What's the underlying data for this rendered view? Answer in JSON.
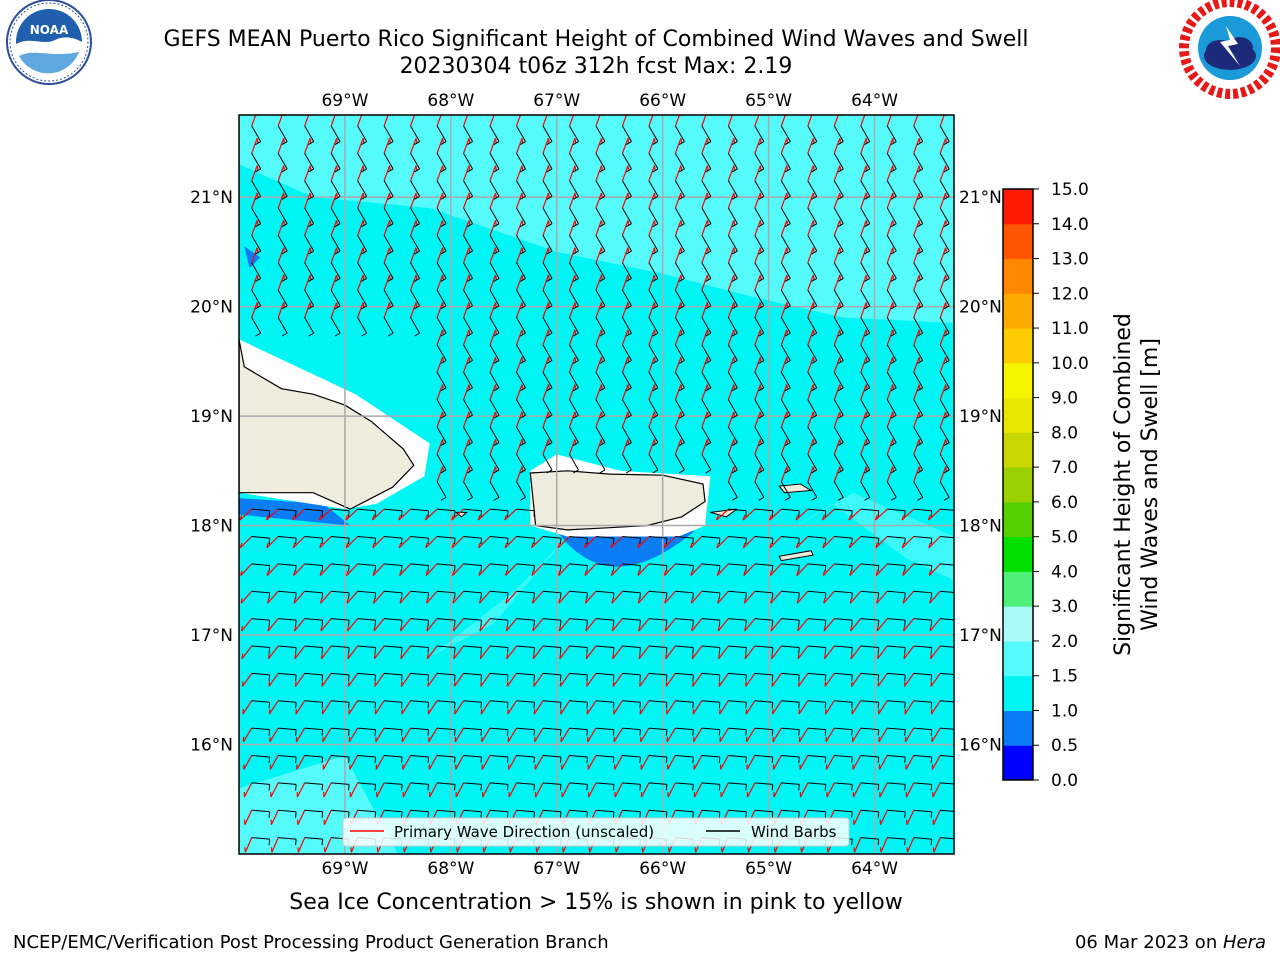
{
  "header": {
    "title_line1": "GEFS MEAN Puerto Rico Significant Height of Combined Wind Waves and Swell",
    "title_line2": "20230304 t06z 312h fcst   Max: 2.19",
    "left_logo": "noaa-logo",
    "right_logo": "national-weather-service-logo"
  },
  "subtitle": "Sea Ice Concentration > 15% is shown in pink to yellow",
  "footer": {
    "left": "NCEP/EMC/Verification Post Processing Product Generation Branch",
    "date": "06 Mar 2023 on ",
    "host": "Hera"
  },
  "chart_data": {
    "type": "heatmap",
    "title": "GEFS MEAN Puerto Rico Significant Height of Combined Wind Waves and Swell",
    "run": "20230304 t06z 312h fcst",
    "max_value": 2.19,
    "x_axis": {
      "range_deg": [
        -70.0,
        -63.25
      ],
      "ticks": [
        -69,
        -68,
        -67,
        -66,
        -65,
        -64
      ],
      "tick_labels": [
        "69°W",
        "68°W",
        "67°W",
        "66°W",
        "65°W",
        "64°W"
      ]
    },
    "y_axis": {
      "range_deg": [
        15.0,
        21.75
      ],
      "ticks": [
        16,
        17,
        18,
        19,
        20,
        21
      ],
      "tick_labels": [
        "16°N",
        "17°N",
        "18°N",
        "19°N",
        "20°N",
        "21°N"
      ]
    },
    "grid": true,
    "colorbar": {
      "label_line1": "Significant Height of Combined",
      "label_line2": "Wind Waves and Swell [m]",
      "levels": [
        0.0,
        0.5,
        1.0,
        1.5,
        2.0,
        3.0,
        4.0,
        5.0,
        6.0,
        7.0,
        8.0,
        9.0,
        10.0,
        11.0,
        12.0,
        13.0,
        14.0,
        15.0
      ],
      "tick_labels": [
        "0.0",
        "0.5",
        "1.0",
        "1.5",
        "2.0",
        "3.0",
        "4.0",
        "5.0",
        "6.0",
        "7.0",
        "8.0",
        "9.0",
        "10.0",
        "11.0",
        "12.0",
        "13.0",
        "14.0",
        "15.0"
      ],
      "colors": [
        "#0000ff",
        "#0a7df5",
        "#00f5f5",
        "#55fafa",
        "#aafafa",
        "#4ff07a",
        "#00e000",
        "#55d000",
        "#9ad000",
        "#c8d800",
        "#e6e600",
        "#f5f500",
        "#ffcc00",
        "#ffaa00",
        "#ff8800",
        "#ff5500",
        "#ff1a00"
      ]
    },
    "field": {
      "north_band_value": 1.7,
      "main_value": 1.3,
      "south_band_value": 1.2,
      "lee_shelter_value": 0.8,
      "land_color": "#eeecdc"
    },
    "legend": {
      "location": "lower-center",
      "entries": [
        {
          "label": "Primary Wave Direction (unscaled)",
          "color": "#ff0000"
        },
        {
          "label": "Wind Barbs",
          "color": "#000000"
        }
      ]
    }
  }
}
